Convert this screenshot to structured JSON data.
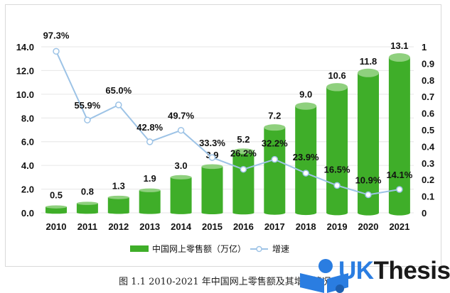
{
  "chart_data": {
    "type": "bar+line",
    "categories": [
      "2010",
      "2011",
      "2012",
      "2013",
      "2014",
      "2015",
      "2016",
      "2017",
      "2018",
      "2019",
      "2020",
      "2021"
    ],
    "series": [
      {
        "name": "中国网上零售额（万亿）",
        "type": "bar",
        "axis": "left",
        "values": [
          0.5,
          0.8,
          1.3,
          1.9,
          3.0,
          3.9,
          5.2,
          7.2,
          9.0,
          10.6,
          11.8,
          13.1
        ],
        "labels": [
          "0.5",
          "0.8",
          "1.3",
          "1.9",
          "3.0",
          "3.9",
          "5.2",
          "7.2",
          "9.0",
          "10.6",
          "11.8",
          "13.1"
        ],
        "color": "#3fae29",
        "top_color": "#8fd07e"
      },
      {
        "name": "增速",
        "type": "line",
        "axis": "right",
        "values": [
          0.973,
          0.559,
          0.65,
          0.428,
          0.497,
          0.333,
          0.262,
          0.322,
          0.239,
          0.165,
          0.109,
          0.141
        ],
        "labels": [
          "97.3%",
          "55.9%",
          "65.0%",
          "42.8%",
          "49.7%",
          "33.3%",
          "26.2%",
          "32.2%",
          "23.9%",
          "16.5%",
          "10.9%",
          "14.1%"
        ],
        "color": "#9dc3e6"
      }
    ],
    "y_left": {
      "range": [
        0,
        14
      ],
      "ticks": [
        "0.0",
        "2.0",
        "4.0",
        "6.0",
        "8.0",
        "10.0",
        "12.0",
        "14.0"
      ]
    },
    "y_right": {
      "range": [
        0,
        1
      ],
      "ticks": [
        "0",
        "0.1",
        "0.2",
        "0.3",
        "0.4",
        "0.5",
        "0.6",
        "0.7",
        "0.8",
        "0.9",
        "1"
      ]
    },
    "grid": true,
    "legend": {
      "placement": "bottom",
      "items": [
        "中国网上零售额（万亿）",
        "增速"
      ]
    },
    "title": "",
    "caption": "图 1.1 2010-2021 年中国网上零售额及其增速情况"
  },
  "watermark": "UKThesis"
}
